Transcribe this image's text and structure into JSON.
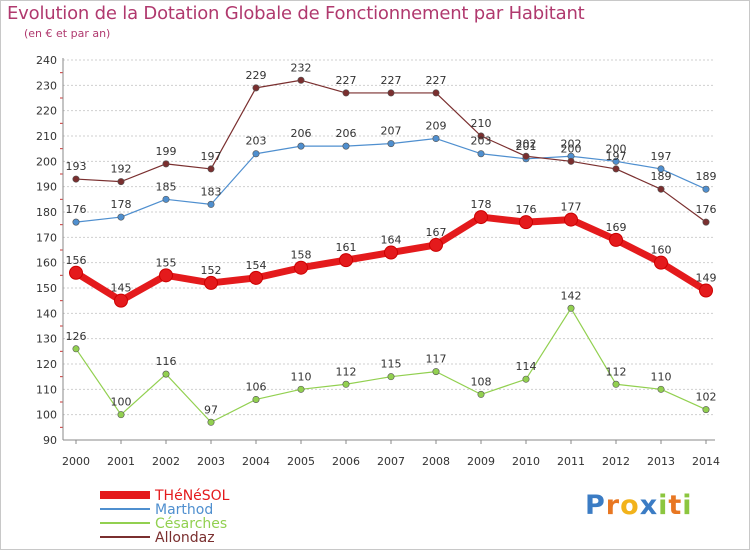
{
  "chart_data": {
    "type": "line",
    "title": "Evolution de la Dotation Globale de Fonctionnement par Habitant",
    "subtitle": "(en € et par an)",
    "categories": [
      "2000",
      "2001",
      "2002",
      "2003",
      "2004",
      "2005",
      "2006",
      "2007",
      "2008",
      "2009",
      "2010",
      "2011",
      "2012",
      "2013",
      "2014"
    ],
    "ylim": [
      90,
      240
    ],
    "yticks": [
      90,
      100,
      110,
      120,
      130,
      140,
      150,
      160,
      170,
      180,
      190,
      200,
      210,
      220,
      230,
      240
    ],
    "grid": true,
    "series": [
      {
        "name": "THéNéSOL",
        "color": "#e41a1c",
        "values": [
          156,
          145,
          155,
          152,
          154,
          158,
          161,
          164,
          167,
          178,
          176,
          177,
          169,
          160,
          149
        ]
      },
      {
        "name": "Marthod",
        "color": "#4f8fcf",
        "values": [
          176,
          178,
          185,
          183,
          203,
          206,
          206,
          207,
          209,
          203,
          201,
          202,
          200,
          197,
          189
        ]
      },
      {
        "name": "Césarches",
        "color": "#92d050",
        "values": [
          126,
          100,
          116,
          97,
          106,
          110,
          112,
          115,
          117,
          108,
          114,
          142,
          112,
          110,
          102
        ]
      },
      {
        "name": "Allondaz",
        "color": "#7a2f2f",
        "values": [
          193,
          192,
          199,
          197,
          229,
          232,
          227,
          227,
          227,
          210,
          202,
          200,
          197,
          189,
          176
        ]
      }
    ],
    "legend_position": "bottom-left"
  },
  "branding": {
    "letters": [
      "P",
      "r",
      "o",
      "x",
      "i",
      "t",
      "i"
    ],
    "colors": [
      "#3b7cc4",
      "#e87722",
      "#f2b31b",
      "#3b7cc4",
      "#8cc63f",
      "#e87722",
      "#8cc63f"
    ]
  }
}
